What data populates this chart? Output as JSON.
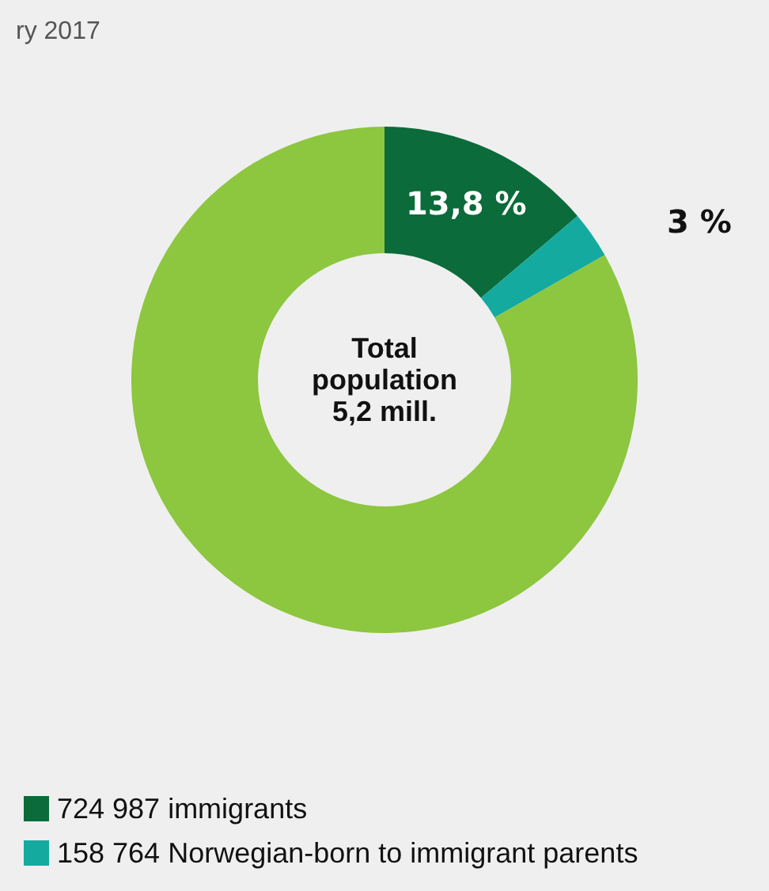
{
  "chart_data": {
    "type": "donut",
    "categories": [
      "724 987 immigrants",
      "158 764 Norwegian-born to immigrant parents",
      null
    ],
    "values": [
      13.8,
      3,
      83.2
    ],
    "colors": [
      "#0b6b3a",
      "#14aaa0",
      "#8dc63f"
    ],
    "value_labels": [
      "13,8 %",
      "3 %",
      null
    ],
    "annotations": [
      "Total\npopulation\n5,2 mill.",
      "ry 2017"
    ],
    "legend": "bottom left"
  }
}
